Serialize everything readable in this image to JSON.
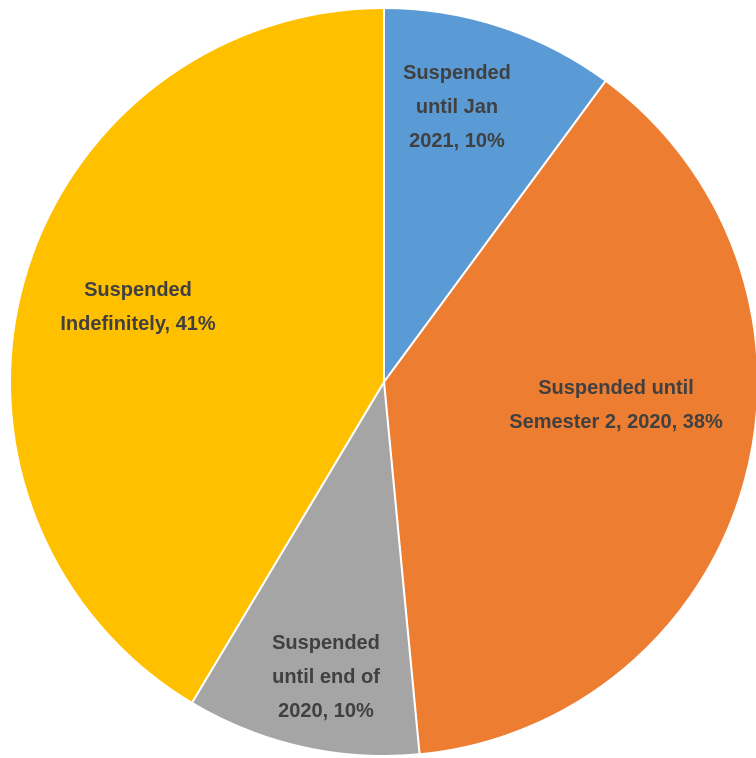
{
  "chart_data": {
    "type": "pie",
    "slices": [
      {
        "label": "Suspended until Jan 2021",
        "value": 10,
        "display": [
          "Suspended",
          "until Jan",
          "2021, 10%"
        ],
        "color": "#5B9BD5",
        "text_color": "#404040"
      },
      {
        "label": "Suspended until Semester 2, 2020",
        "value": 38,
        "display": [
          "Suspended until",
          "Semester 2, 2020, 38%"
        ],
        "color": "#ED7D31",
        "text_color": "#404040"
      },
      {
        "label": "Suspended until end of 2020",
        "value": 10,
        "display": [
          "Suspended",
          "until end of",
          "2020, 10%"
        ],
        "color": "#A5A5A5",
        "text_color": "#404040"
      },
      {
        "label": "Suspended Indefinitely",
        "value": 41,
        "display": [
          "Suspended",
          "Indefinitely, 41%"
        ],
        "color": "#FFC000",
        "text_color": "#404040"
      }
    ],
    "start_angle_deg": 0,
    "direction": "clockwise",
    "legend": "none"
  }
}
